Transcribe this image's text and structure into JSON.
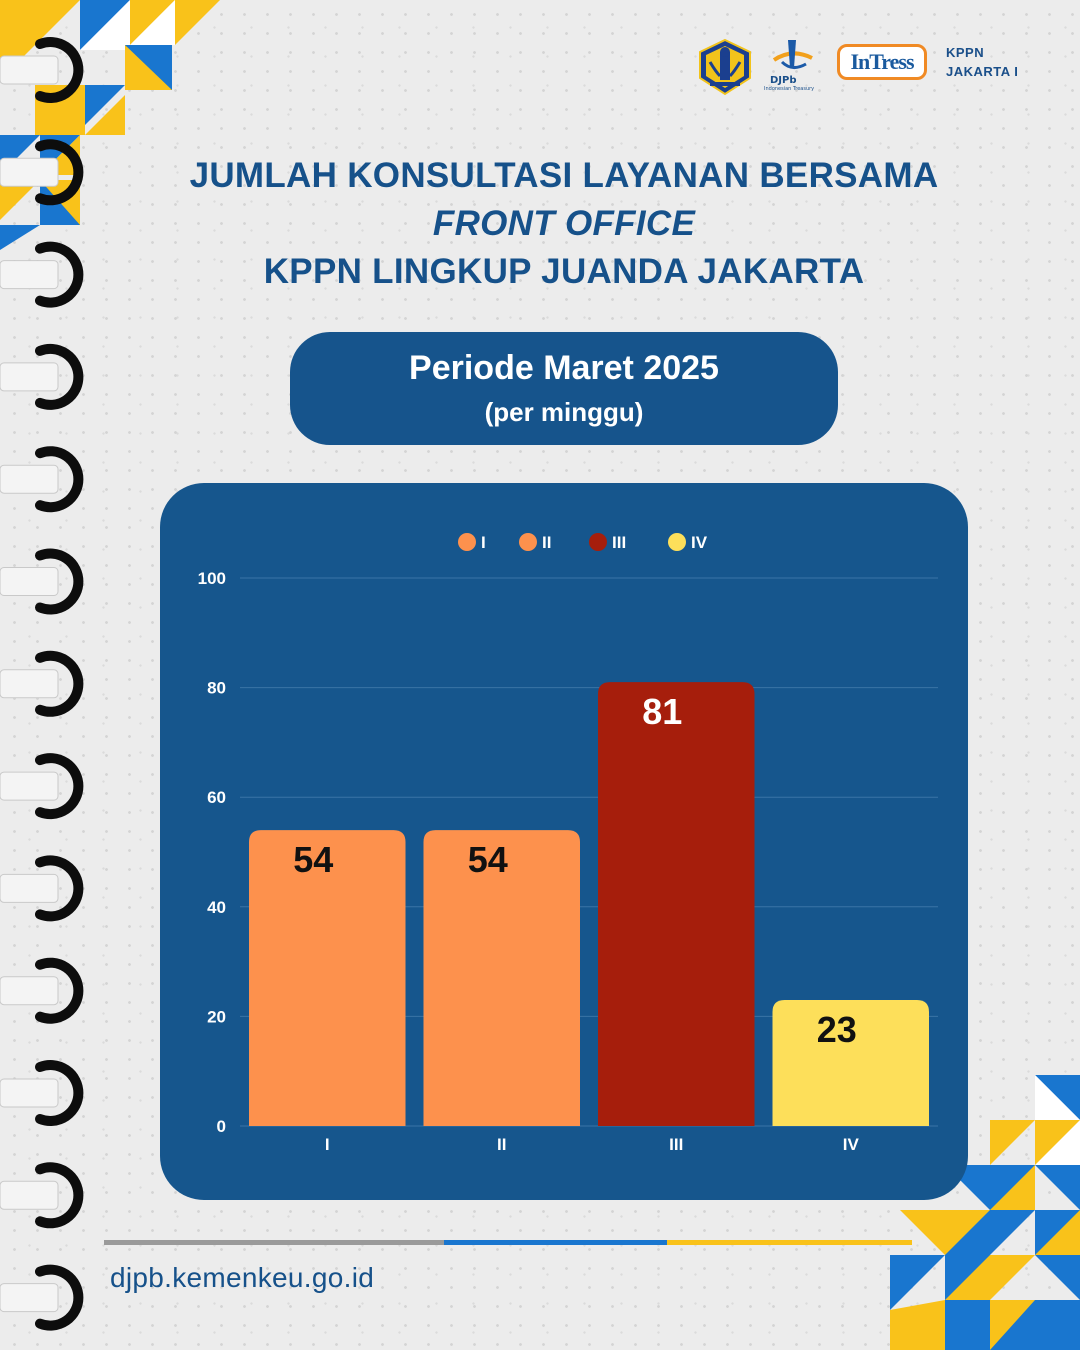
{
  "header": {
    "org_label_line1": "KPPN",
    "org_label_line2": "JAKARTA I",
    "djpb_logo_text": "DJPb",
    "djpb_logo_sub": "Indonesian Treasury",
    "intress_logo_text": "InTress"
  },
  "title": {
    "line1": "JUMLAH KONSULTASI LAYANAN BERSAMA",
    "line2": "FRONT OFFICE",
    "line3": "KPPN LINGKUP JUANDA JAKARTA"
  },
  "period": {
    "label": "Periode Maret 2025",
    "sub": "(per minggu)"
  },
  "chart_data": {
    "type": "bar",
    "categories": [
      "I",
      "II",
      "III",
      "IV"
    ],
    "values": [
      54,
      54,
      81,
      23
    ],
    "colors": [
      "#fd914d",
      "#fd914d",
      "#a61e0c",
      "#fddf5a"
    ],
    "label_colors": [
      "#111111",
      "#111111",
      "#ffffff",
      "#111111"
    ],
    "ylim": [
      0,
      100
    ],
    "yticks": [
      0,
      20,
      40,
      60,
      80,
      100
    ],
    "grid": true,
    "legend": {
      "placement": "top-center",
      "entries": [
        "I",
        "II",
        "III",
        "IV"
      ]
    }
  },
  "footer": {
    "url": "djpb.kemenkeu.go.id"
  },
  "colors": {
    "brand_blue": "#16548c",
    "accent_yellow": "#f9c21a",
    "accent_blue": "#1976cf"
  }
}
